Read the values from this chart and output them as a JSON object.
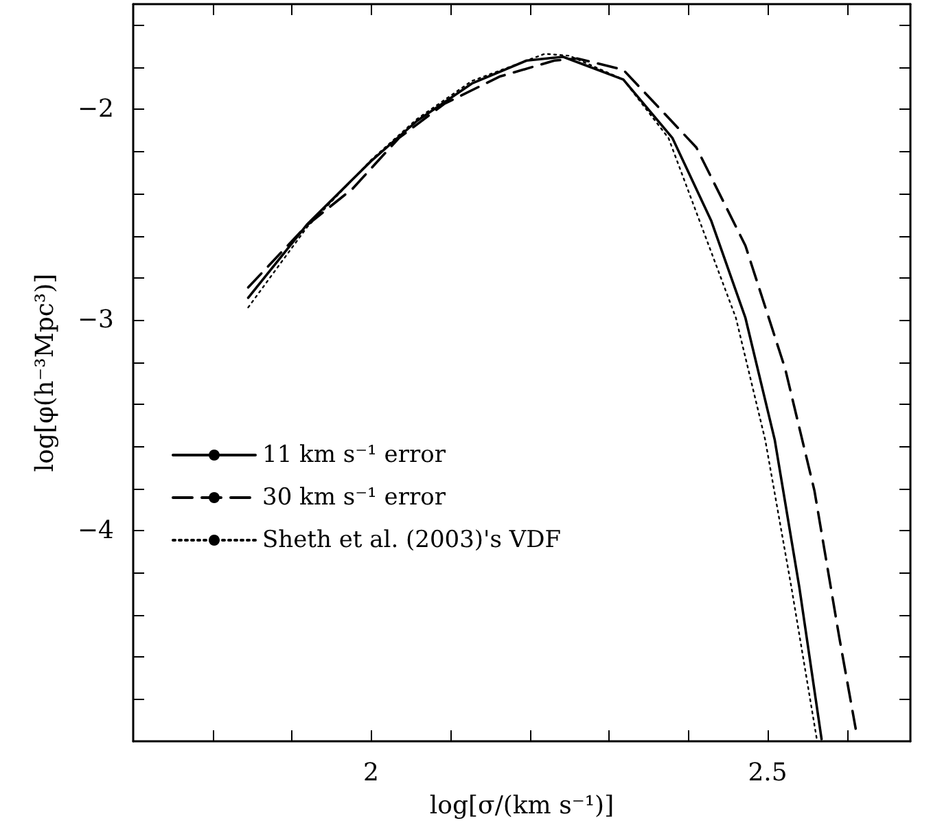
{
  "chart_data": {
    "type": "line",
    "xlabel": "log[σ/(km s⁻¹)]",
    "ylabel": "log[φ(h⁻³Mpc³)]",
    "xlim": [
      1.7,
      2.68
    ],
    "xticks": [
      {
        "value": 1.8,
        "label": null
      },
      {
        "value": 1.9,
        "label": null
      },
      2,
      {
        "value": 2.1,
        "label": null
      },
      {
        "value": 2.2,
        "label": null
      },
      {
        "value": 2.3,
        "label": null
      },
      {
        "value": 2.4,
        "label": null
      },
      2.5,
      {
        "value": 2.6,
        "label": null
      }
    ],
    "ylim": [
      -5,
      -1.5
    ],
    "yticks": [
      {
        "value": -4.8,
        "label": null
      },
      {
        "value": -4.6,
        "label": null
      },
      {
        "value": -4.4,
        "label": null
      },
      {
        "value": -4.2,
        "label": null
      },
      -4,
      {
        "value": -3.8,
        "label": null
      },
      {
        "value": -3.6,
        "label": null
      },
      {
        "value": -3.4,
        "label": null
      },
      {
        "value": -3.2,
        "label": null
      },
      -3,
      {
        "value": -2.8,
        "label": null
      },
      {
        "value": -2.6,
        "label": null
      },
      {
        "value": -2.4,
        "label": null
      },
      {
        "value": -2.2,
        "label": null
      },
      -2,
      {
        "value": -1.8,
        "label": null
      },
      {
        "value": -1.6,
        "label": null
      }
    ],
    "grid": false,
    "legend": "left",
    "marker": "none",
    "series": [
      {
        "name": "11 km s⁻¹ error",
        "color": "#000000",
        "line_style": "solid",
        "x": [
          1.845,
          1.919,
          2.0,
          2.058,
          2.127,
          2.196,
          2.242,
          2.318,
          2.38,
          2.429,
          2.472,
          2.509,
          2.54,
          2.568
        ],
        "values": [
          -2.894,
          -2.547,
          -2.245,
          -2.054,
          -1.877,
          -1.768,
          -1.75,
          -1.858,
          -2.136,
          -2.53,
          -2.99,
          -3.57,
          -4.27,
          -4.99
        ]
      },
      {
        "name": "30 km s⁻¹ error",
        "color": "#000000",
        "line_style": "dashed",
        "x": [
          1.845,
          1.919,
          1.977,
          2.035,
          2.092,
          2.162,
          2.231,
          2.26,
          2.318,
          2.41,
          2.472,
          2.522,
          2.559,
          2.59,
          2.611
        ],
        "values": [
          -2.845,
          -2.55,
          -2.375,
          -2.136,
          -1.974,
          -1.844,
          -1.768,
          -1.758,
          -1.812,
          -2.18,
          -2.647,
          -3.23,
          -3.81,
          -4.5,
          -4.94
        ]
      },
      {
        "name": "Sheth et al. (2003)'s VDF",
        "color": "#000000",
        "line_style": "dotted",
        "x": [
          1.845,
          1.919,
          2.0,
          2.058,
          2.127,
          2.219,
          2.25,
          2.318,
          2.375,
          2.46,
          2.497,
          2.53,
          2.562
        ],
        "values": [
          -2.94,
          -2.56,
          -2.24,
          -2.045,
          -1.865,
          -1.736,
          -1.745,
          -1.858,
          -2.136,
          -2.99,
          -3.57,
          -4.27,
          -4.99
        ]
      }
    ]
  }
}
